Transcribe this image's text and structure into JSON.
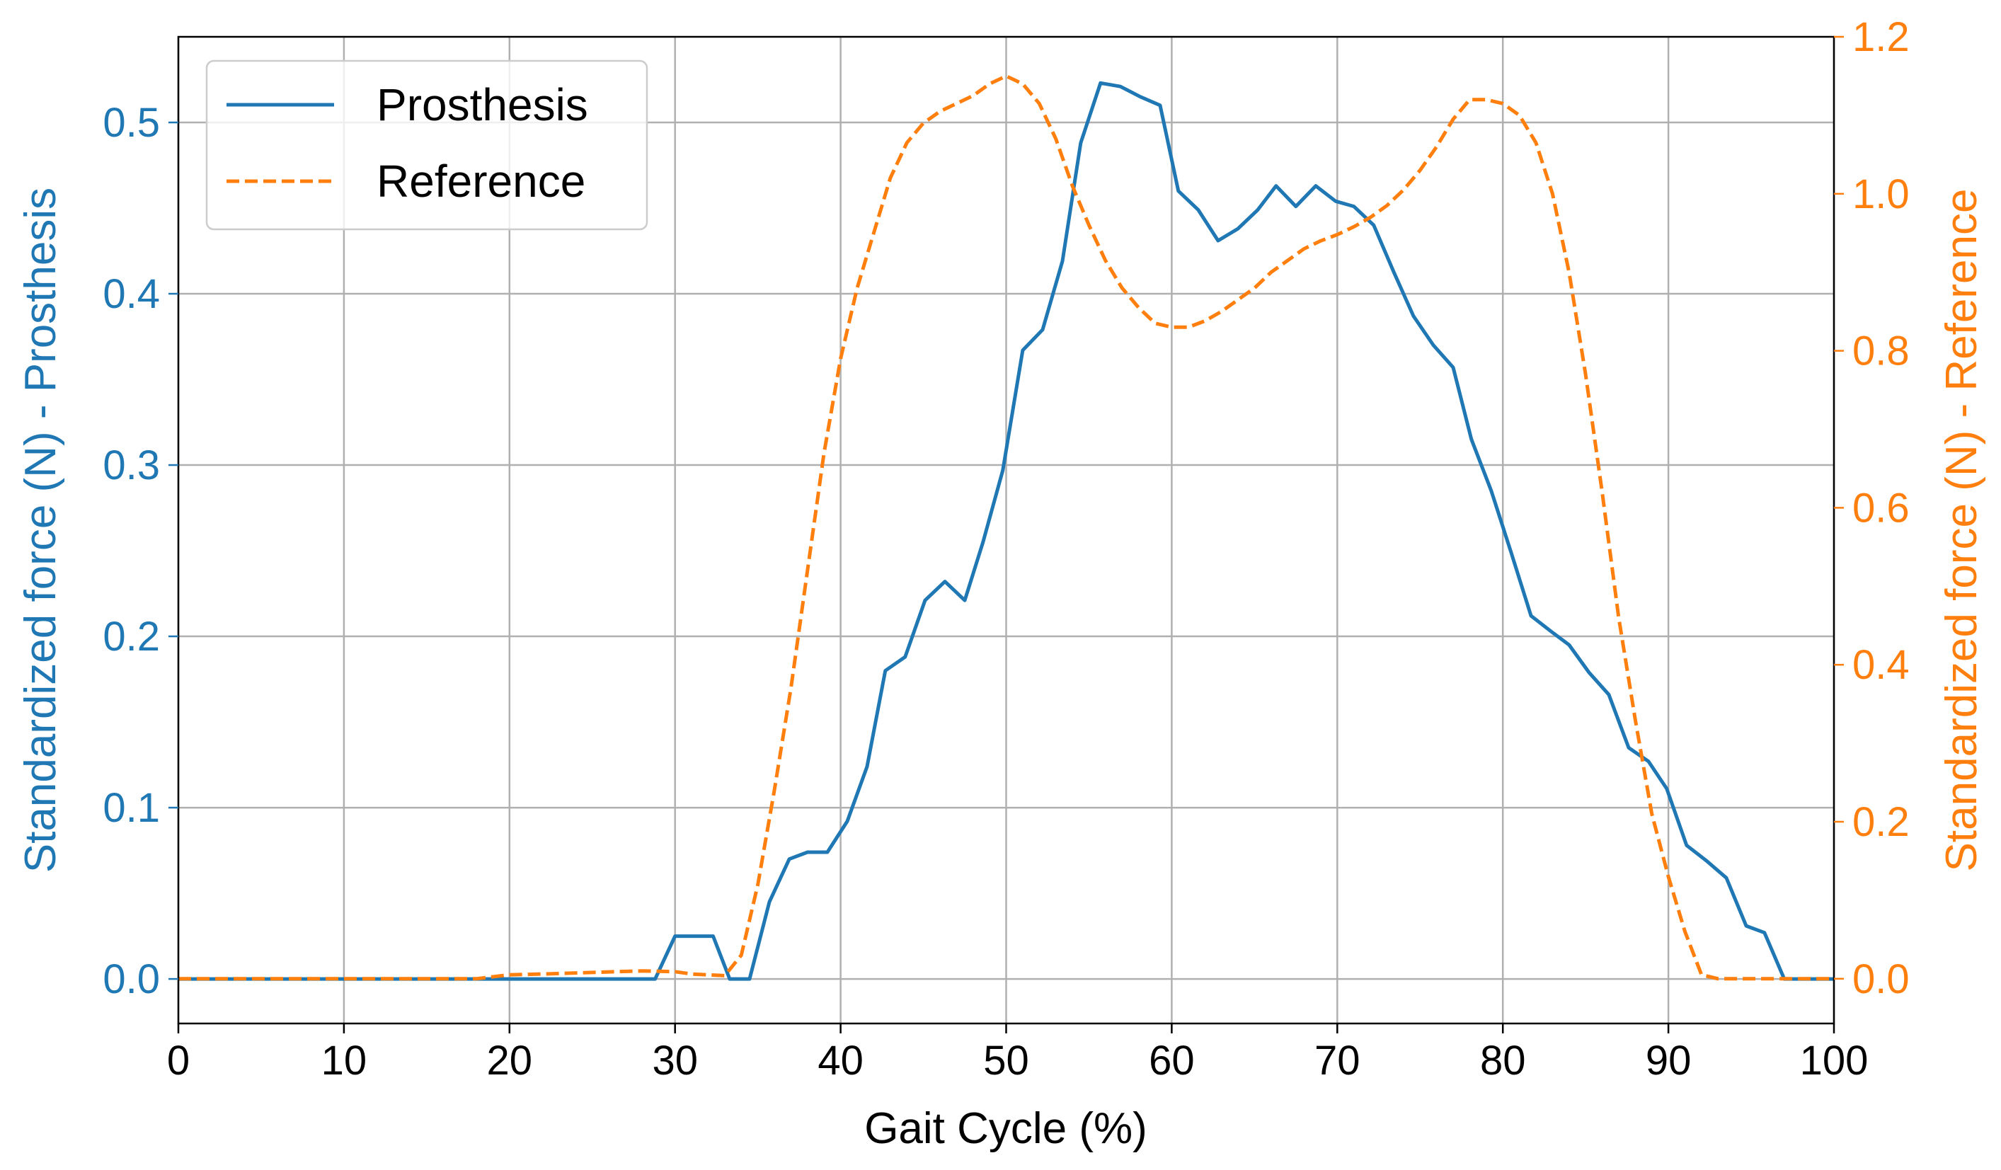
{
  "chart_data": {
    "type": "line",
    "xlabel": "Gait Cycle (%)",
    "xlim": [
      0,
      100
    ],
    "xticks": [
      "0",
      "10",
      "20",
      "30",
      "40",
      "50",
      "60",
      "70",
      "80",
      "90",
      "100"
    ],
    "y_left": {
      "label": "Standardized force (N) - Prosthesis",
      "lim": [
        -0.026,
        0.55
      ],
      "ticks": [
        "0.0",
        "0.1",
        "0.2",
        "0.3",
        "0.4",
        "0.5"
      ],
      "color": "#1f77b4"
    },
    "y_right": {
      "label": "Standardized force (N) - Reference",
      "lim": [
        -0.057,
        1.2
      ],
      "ticks": [
        "0.0",
        "0.2",
        "0.4",
        "0.6",
        "0.8",
        "1.0",
        "1.2"
      ],
      "color": "#ff7f0e"
    },
    "grid": true,
    "legend": {
      "placement": "upper-left"
    },
    "series": [
      {
        "name": "Prosthesis",
        "axis": "left",
        "style": "solid",
        "color": "#1f77b4",
        "x": [
          0,
          5,
          10,
          15,
          20,
          25,
          28.8,
          30,
          31,
          32.3,
          33.3,
          34.5,
          35.7,
          36.9,
          38,
          39.2,
          40.4,
          41.6,
          42.7,
          43.9,
          45.1,
          46.3,
          47.5,
          48.6,
          49.8,
          51,
          52.2,
          53.4,
          54.5,
          55.7,
          56.9,
          58.1,
          59.3,
          60.4,
          61.6,
          62.8,
          64,
          65.2,
          66.3,
          67.5,
          68.7,
          69.9,
          71,
          72.2,
          73.4,
          74.6,
          75.8,
          77,
          78.1,
          79.3,
          80.5,
          81.7,
          82.9,
          84,
          85.2,
          86.4,
          87.6,
          88.8,
          89.9,
          91.1,
          92.3,
          93.5,
          94.7,
          95.8,
          97,
          98.2,
          99.4,
          100
        ],
        "y": [
          0,
          0,
          0,
          0,
          0,
          0,
          0,
          0.025,
          0.025,
          0.025,
          0,
          0,
          0.045,
          0.07,
          0.074,
          0.074,
          0.092,
          0.124,
          0.18,
          0.188,
          0.221,
          0.232,
          0.221,
          0.255,
          0.297,
          0.367,
          0.379,
          0.419,
          0.488,
          0.523,
          0.521,
          0.515,
          0.51,
          0.46,
          0.449,
          0.431,
          0.438,
          0.449,
          0.463,
          0.451,
          0.463,
          0.454,
          0.451,
          0.44,
          0.413,
          0.387,
          0.37,
          0.357,
          0.315,
          0.285,
          0.249,
          0.212,
          0.203,
          0.195,
          0.179,
          0.166,
          0.135,
          0.127,
          0.111,
          0.078,
          0.069,
          0.059,
          0.031,
          0.027,
          0,
          0,
          0,
          0
        ]
      },
      {
        "name": "Reference",
        "axis": "right",
        "style": "dashed",
        "color": "#ff7f0e",
        "x": [
          0,
          5,
          10,
          15,
          18,
          20,
          22,
          25,
          28,
          30,
          31,
          33,
          34,
          35,
          36,
          37,
          38,
          39,
          40,
          41,
          42,
          43,
          44,
          45,
          46,
          47,
          48,
          49,
          50,
          51,
          52,
          53,
          54,
          55,
          56,
          57,
          58,
          59,
          60,
          61,
          62,
          63,
          64,
          65,
          66,
          67,
          68,
          69,
          70,
          71,
          72,
          73,
          74,
          75,
          76,
          77,
          78,
          79,
          80,
          81,
          82,
          83,
          84,
          85,
          86,
          87,
          88,
          89,
          90,
          91,
          92,
          93,
          94,
          95,
          96,
          97,
          98,
          99,
          100
        ],
        "y": [
          0,
          0,
          0,
          0,
          0,
          0.005,
          0.006,
          0.008,
          0.01,
          0.009,
          0.006,
          0.004,
          0.03,
          0.12,
          0.24,
          0.37,
          0.52,
          0.67,
          0.79,
          0.88,
          0.95,
          1.02,
          1.065,
          1.09,
          1.105,
          1.115,
          1.125,
          1.14,
          1.15,
          1.14,
          1.115,
          1.07,
          1.01,
          0.96,
          0.915,
          0.88,
          0.855,
          0.835,
          0.83,
          0.83,
          0.838,
          0.85,
          0.865,
          0.88,
          0.9,
          0.915,
          0.93,
          0.94,
          0.948,
          0.958,
          0.97,
          0.985,
          1.005,
          1.03,
          1.06,
          1.095,
          1.12,
          1.12,
          1.115,
          1.1,
          1.065,
          1.0,
          0.9,
          0.77,
          0.62,
          0.46,
          0.33,
          0.21,
          0.13,
          0.06,
          0.005,
          0,
          0,
          0,
          0,
          0,
          0,
          0,
          0
        ]
      }
    ]
  }
}
